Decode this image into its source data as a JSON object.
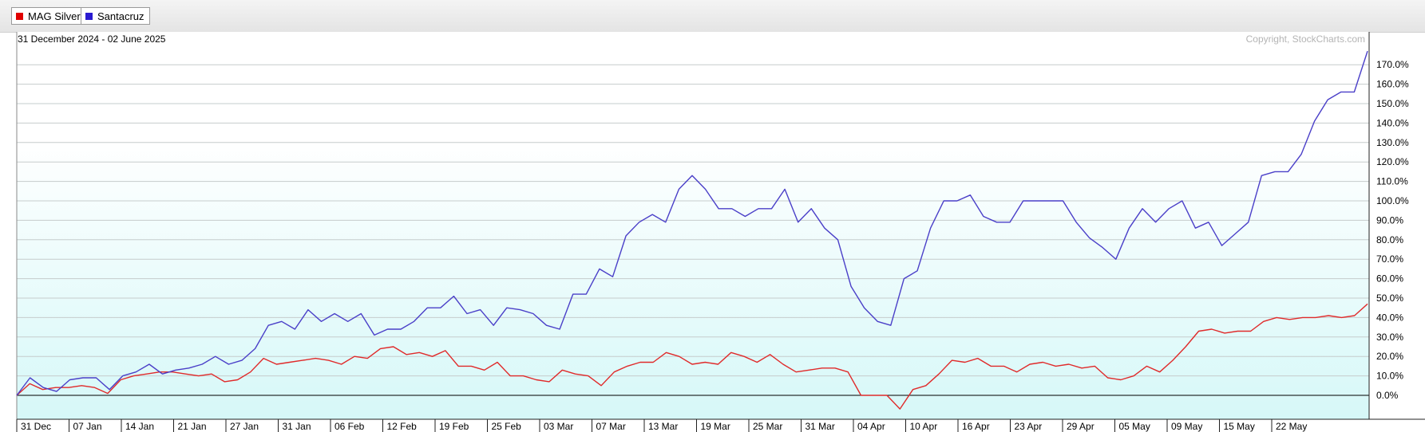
{
  "legend": {
    "items": [
      {
        "label": "MAG Silver",
        "color": "#e00000"
      },
      {
        "label": "Santacruz",
        "color": "#2a1ad0"
      }
    ]
  },
  "chart_header": {
    "date_range": "31 December 2024 - 02 June 2025",
    "copyright": "Copyright, StockCharts.com"
  },
  "chart_data": {
    "type": "line",
    "x_tick_labels": [
      "31 Dec",
      "07 Jan",
      "14 Jan",
      "21 Jan",
      "27 Jan",
      "31 Jan",
      "06 Feb",
      "12 Feb",
      "19 Feb",
      "25 Feb",
      "03 Mar",
      "07 Mar",
      "13 Mar",
      "19 Mar",
      "25 Mar",
      "31 Mar",
      "04 Apr",
      "10 Apr",
      "16 Apr",
      "23 Apr",
      "29 Apr",
      "05 May",
      "09 May",
      "15 May",
      "22 May"
    ],
    "y_tick_labels": [
      "0.0%",
      "10.0%",
      "20.0%",
      "30.0%",
      "40.0%",
      "50.0%",
      "60.0%",
      "70.0%",
      "80.0%",
      "90.0%",
      "100.0%",
      "110.0%",
      "120.0%",
      "130.0%",
      "140.0%",
      "150.0%",
      "160.0%",
      "170.0%"
    ],
    "ylim": [
      -7,
      180
    ],
    "y_unit": "%",
    "grid": true,
    "series": [
      {
        "name": "Santacruz",
        "color": "#4a3fc8",
        "values": [
          0,
          9,
          4,
          2,
          8,
          9,
          9,
          3,
          10,
          12,
          16,
          11,
          13,
          14,
          16,
          20,
          16,
          18,
          24,
          36,
          38,
          34,
          44,
          38,
          42,
          38,
          42,
          31,
          34,
          34,
          38,
          45,
          45,
          51,
          42,
          44,
          36,
          45,
          44,
          42,
          36,
          34,
          52,
          52,
          65,
          61,
          82,
          89,
          93,
          89,
          106,
          113,
          106,
          96,
          96,
          92,
          96,
          96,
          106,
          89,
          96,
          86,
          80,
          56,
          45,
          38,
          36,
          60,
          64,
          86,
          100,
          100,
          103,
          92,
          89,
          89,
          100,
          100,
          100,
          100,
          89,
          81,
          76,
          70,
          86,
          96,
          89,
          96,
          100,
          86,
          89,
          77,
          83,
          89,
          113,
          115,
          115,
          124,
          141,
          152,
          156,
          156,
          177
        ]
      },
      {
        "name": "MAG Silver",
        "color": "#e02a2a",
        "values": [
          0,
          6,
          3,
          4,
          4,
          5,
          4,
          1,
          8,
          10,
          11,
          12,
          12,
          11,
          10,
          11,
          7,
          8,
          12,
          19,
          16,
          17,
          18,
          19,
          18,
          16,
          20,
          19,
          24,
          25,
          21,
          22,
          20,
          23,
          15,
          15,
          13,
          17,
          10,
          10,
          8,
          7,
          13,
          11,
          10,
          5,
          12,
          15,
          17,
          17,
          22,
          20,
          16,
          17,
          16,
          22,
          20,
          17,
          21,
          16,
          12,
          13,
          14,
          14,
          12,
          0,
          0,
          0,
          -7,
          3,
          5,
          11,
          18,
          17,
          19,
          15,
          15,
          12,
          16,
          17,
          15,
          16,
          14,
          15,
          9,
          8,
          10,
          15,
          12,
          18,
          25,
          33,
          34,
          32,
          33,
          33,
          38,
          40,
          39,
          40,
          40,
          41,
          40,
          41,
          47
        ]
      }
    ]
  }
}
